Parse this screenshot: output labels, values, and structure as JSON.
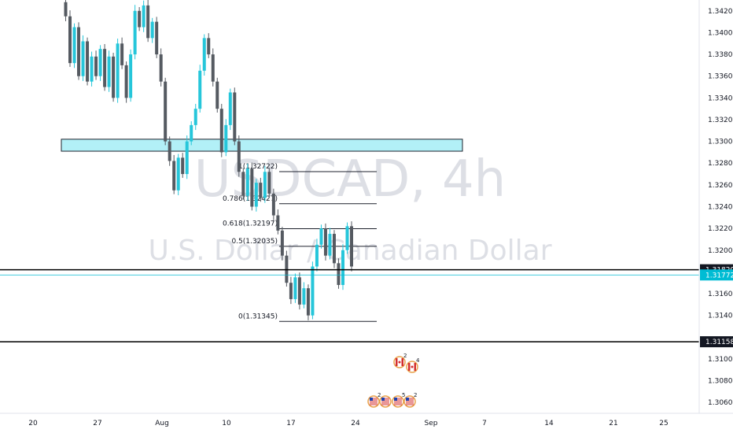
{
  "chart_data": {
    "type": "candlestick",
    "symbol": "USDCAD",
    "timeframe": "4h",
    "watermark_title": "USDCAD, 4h",
    "watermark_subtitle": "U.S. Dollar / Canadian Dollar",
    "ylim": [
      1.305,
      1.343
    ],
    "price_ticks": [
      "1.34200",
      "1.34000",
      "1.33800",
      "1.33600",
      "1.33400",
      "1.33200",
      "1.33000",
      "1.32800",
      "1.32600",
      "1.32400",
      "1.32200",
      "1.32000",
      "1.31600",
      "1.31400",
      "1.31000",
      "1.30800",
      "1.30600"
    ],
    "date_ticks": [
      "20",
      "27",
      "Aug",
      "10",
      "17",
      "24",
      "Sep",
      "7",
      "14",
      "21",
      "25"
    ],
    "horizontal_levels": [
      {
        "label": "1.31820",
        "price": 1.3182,
        "style": "line"
      },
      {
        "label": "1.31158",
        "price": 1.31158,
        "style": "line"
      }
    ],
    "current_price": {
      "label": "1.31772",
      "price": 1.31772,
      "color": "#00bcd4"
    },
    "zone": {
      "from": 1.3291,
      "to": 1.3302,
      "color": "#b2f0f7"
    },
    "fibonacci": [
      {
        "label": "1(1.32722)",
        "price": 1.32722
      },
      {
        "label": "0.786(1.32427)",
        "price": 1.32427
      },
      {
        "label": "0.618(1.32197)",
        "price": 1.32197
      },
      {
        "label": "0.5(1.32035)",
        "price": 1.32035
      },
      {
        "label": "0(1.31345)",
        "price": 1.31345
      }
    ],
    "price_path": [
      1.3428,
      1.3415,
      1.3372,
      1.3405,
      1.336,
      1.3392,
      1.3355,
      1.3378,
      1.336,
      1.3385,
      1.335,
      1.3378,
      1.334,
      1.339,
      1.337,
      1.334,
      1.338,
      1.342,
      1.3405,
      1.3425,
      1.3395,
      1.341,
      1.338,
      1.3355,
      1.33,
      1.3282,
      1.3255,
      1.3285,
      1.327,
      1.33,
      1.3315,
      1.333,
      1.3365,
      1.3395,
      1.338,
      1.3355,
      1.333,
      1.329,
      1.3315,
      1.3345,
      1.33,
      1.3272,
      1.325,
      1.3275,
      1.324,
      1.3262,
      1.3248,
      1.3272,
      1.3252,
      1.3232,
      1.3218,
      1.3195,
      1.317,
      1.3155,
      1.3175,
      1.315,
      1.3165,
      1.314,
      1.3185,
      1.3205,
      1.322,
      1.3195,
      1.3215,
      1.3188,
      1.3168,
      1.32,
      1.3222,
      1.3185
    ],
    "calendar_events": {
      "row1": [
        "2",
        "4"
      ],
      "row2": [
        "2",
        "5",
        "2"
      ]
    },
    "colors": {
      "candle_up": "#26c6da",
      "candle_down": "#555a61",
      "level": "#000000",
      "price_label": "#00bcd4"
    }
  }
}
